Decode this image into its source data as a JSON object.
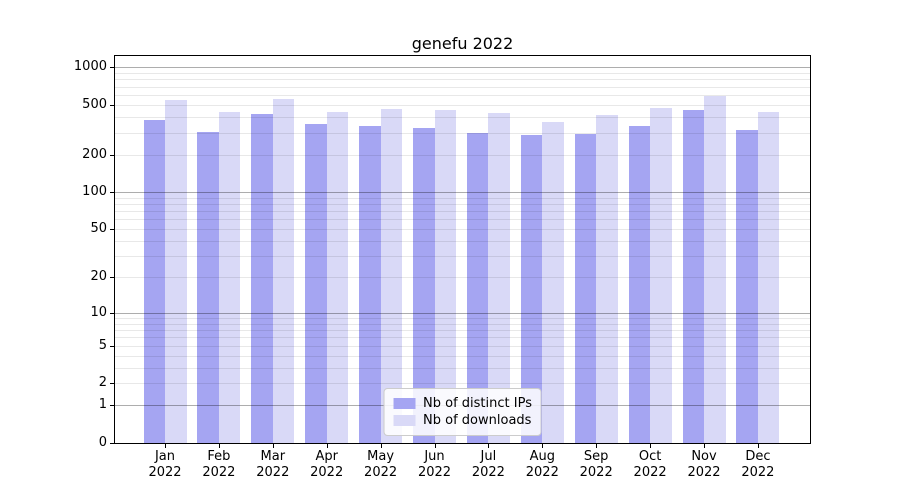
{
  "chart": {
    "title": "genefu 2022",
    "colors": {
      "distinct_ips": "#a5a5f2",
      "downloads": "#d9d9f7",
      "grid_major": "#b2b2b2",
      "grid_minor": "#e8e8e8",
      "axis": "#000000"
    },
    "legend": [
      {
        "label": "Nb of distinct IPs",
        "series": "distinct_ips"
      },
      {
        "label": "Nb of downloads",
        "series": "downloads"
      }
    ],
    "y_ticks": [
      0,
      1,
      2,
      5,
      10,
      20,
      50,
      100,
      200,
      500,
      1000
    ]
  },
  "chart_data": {
    "type": "bar",
    "title": "genefu 2022",
    "categories": [
      "Jan 2022",
      "Feb 2022",
      "Mar 2022",
      "Apr 2022",
      "May 2022",
      "Jun 2022",
      "Jul 2022",
      "Aug 2022",
      "Sep 2022",
      "Oct 2022",
      "Nov 2022",
      "Dec 2022"
    ],
    "series": [
      {
        "name": "Nb of distinct IPs",
        "values": [
          379,
          302,
          423,
          352,
          338,
          326,
          301,
          288,
          295,
          342,
          457,
          315
        ]
      },
      {
        "name": "Nb of downloads",
        "values": [
          551,
          441,
          561,
          442,
          466,
          456,
          430,
          368,
          419,
          473,
          594,
          441
        ]
      }
    ],
    "xlabel": "",
    "ylabel": "",
    "yscale": "log1p",
    "ylim": [
      0,
      1231
    ],
    "y_ticks": [
      0,
      1,
      2,
      5,
      10,
      20,
      50,
      100,
      200,
      500,
      1000
    ],
    "grid": true,
    "grid_on_top": true,
    "legend_position": "lower center"
  }
}
